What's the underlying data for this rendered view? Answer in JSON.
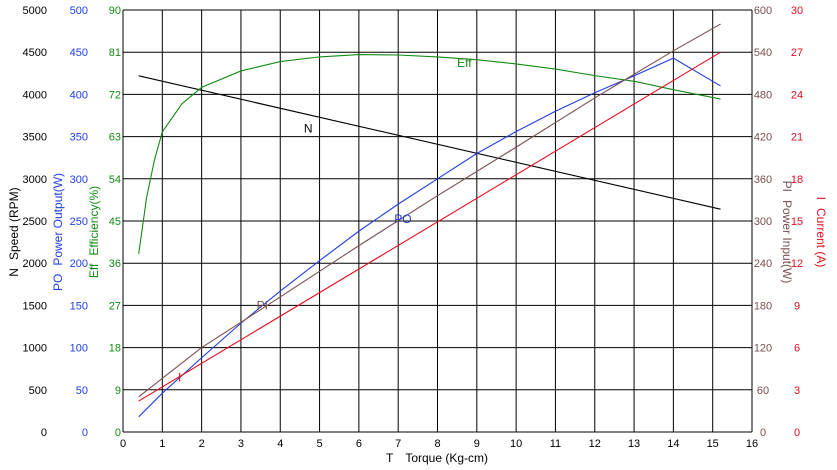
{
  "chart_data": {
    "type": "line",
    "grid": true,
    "x_axis": {
      "symbol": "T",
      "label": "Torque (Kg-cm)",
      "range": [
        0,
        16
      ],
      "ticks": [
        "0",
        "1",
        "2",
        "3",
        "4",
        "5",
        "6",
        "7",
        "8",
        "9",
        "10",
        "11",
        "12",
        "13",
        "14",
        "15",
        "16"
      ]
    },
    "y_axes": [
      {
        "symbol": "N",
        "label": "Speed (RPM)",
        "color": "#000000",
        "side": "left",
        "range": [
          0,
          5000
        ],
        "ticks": [
          "0",
          "500",
          "1000",
          "1500",
          "2000",
          "2500",
          "3000",
          "3500",
          "4000",
          "4500",
          "5000"
        ]
      },
      {
        "symbol": "PO",
        "label": "Power Output(W)",
        "color": "#1f3fdf",
        "side": "left",
        "range": [
          0,
          500
        ],
        "ticks": [
          "0",
          "50",
          "100",
          "150",
          "200",
          "250",
          "300",
          "350",
          "400",
          "450",
          "500"
        ]
      },
      {
        "symbol": "Eff",
        "label": "Efficiency(%)",
        "color": "#138a13",
        "side": "left",
        "range": [
          0,
          90
        ],
        "ticks": [
          "0",
          "9",
          "18",
          "27",
          "36",
          "45",
          "54",
          "63",
          "72",
          "81",
          "90"
        ]
      },
      {
        "symbol": "PI",
        "label": "Power Input(W)",
        "color": "#7a5050",
        "side": "right",
        "range": [
          0,
          600
        ],
        "ticks": [
          "0",
          "60",
          "120",
          "180",
          "240",
          "300",
          "360",
          "420",
          "480",
          "540",
          "600"
        ]
      },
      {
        "symbol": "I",
        "label": "Current (A)",
        "color": "#e01020",
        "side": "right",
        "range": [
          0,
          30
        ],
        "ticks": [
          "0",
          "3",
          "6",
          "9",
          "12",
          "15",
          "18",
          "21",
          "24",
          "27",
          "30"
        ]
      }
    ],
    "series": [
      {
        "name": "N",
        "axis": 0,
        "color": "#000000",
        "x": [
          0.4,
          15.2
        ],
        "y": [
          4220,
          2640
        ]
      },
      {
        "name": "PO",
        "axis": 1,
        "color": "#1f3fdf",
        "x": [
          0.4,
          1.0,
          2.0,
          3.0,
          4.0,
          5.0,
          6.0,
          7.0,
          8.0,
          9.0,
          10.0,
          11.0,
          12.0,
          13.0,
          14.0,
          15.2
        ],
        "y": [
          18,
          46,
          88,
          129,
          167,
          203,
          238,
          270,
          300,
          330,
          356,
          380,
          402,
          422,
          443,
          410
        ]
      },
      {
        "name": "Eff",
        "axis": 2,
        "color": "#138a13",
        "x": [
          0.4,
          0.6,
          0.8,
          1.0,
          1.5,
          2.0,
          3.0,
          4.0,
          5.0,
          6.0,
          7.0,
          8.0,
          9.0,
          10.0,
          11.0,
          12.0,
          13.0,
          14.0,
          15.2
        ],
        "y": [
          38,
          50,
          58,
          64,
          70,
          73.5,
          77,
          79,
          80,
          80.5,
          80.4,
          80,
          79.4,
          78.5,
          77.4,
          76,
          74.8,
          73,
          71
        ]
      },
      {
        "name": "PI",
        "axis": 3,
        "color": "#7a5050",
        "x": [
          0.4,
          2.0,
          4.0,
          6.0,
          8.0,
          10.0,
          12.0,
          14.0,
          15.2
        ],
        "y": [
          50,
          120,
          192,
          265,
          336,
          405,
          475,
          542,
          580
        ]
      },
      {
        "name": "I",
        "axis": 4,
        "color": "#e01020",
        "x": [
          0.4,
          15.2
        ],
        "y": [
          2.2,
          27.0
        ]
      }
    ],
    "curve_labels": [
      {
        "text": "N",
        "x": 4.6,
        "y_frac": 0.71,
        "color": "#000000"
      },
      {
        "text": "PO",
        "x": 6.9,
        "y_frac": 0.495,
        "color": "#1f3fdf"
      },
      {
        "text": "Eff",
        "x": 8.5,
        "y_frac": 0.865,
        "color": "#138a13"
      },
      {
        "text": "PI",
        "x": 3.4,
        "y_frac": 0.29,
        "color": "#7a5050"
      },
      {
        "text": "I",
        "x": 1.4,
        "y_frac": 0.12,
        "color": "#e01020"
      }
    ]
  }
}
